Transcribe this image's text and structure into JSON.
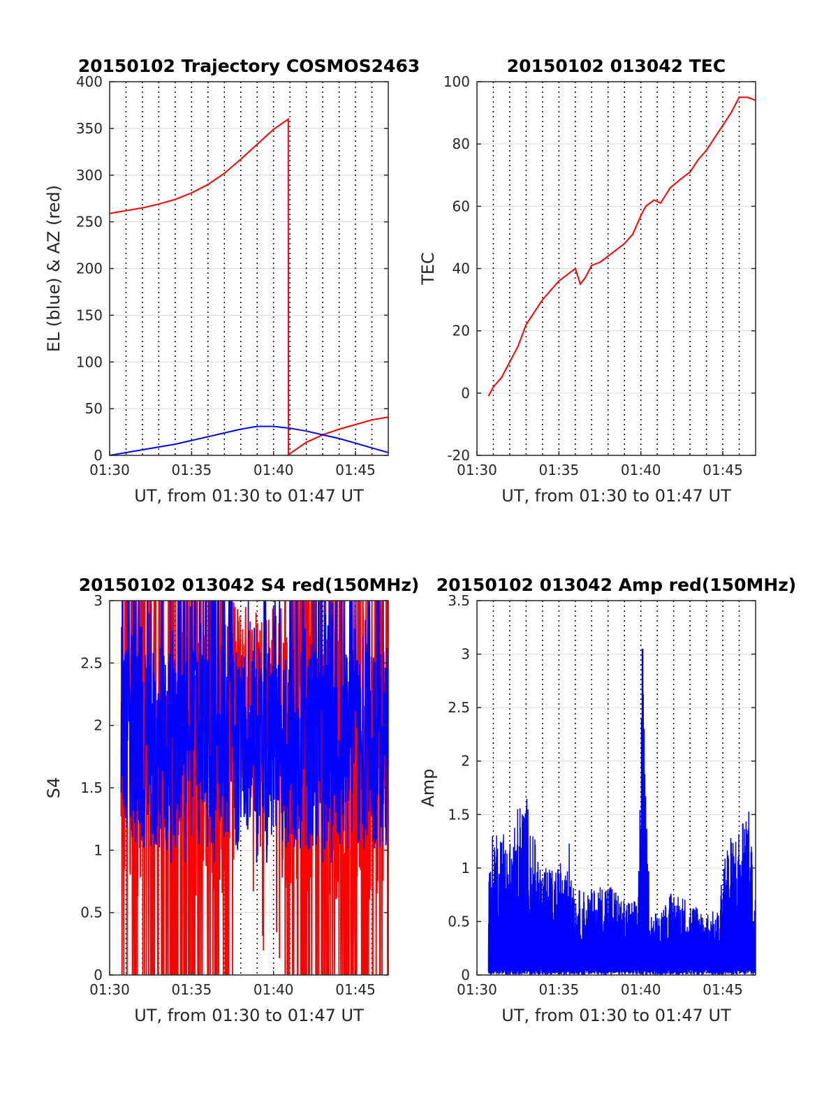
{
  "colors": {
    "red": "#ff0000",
    "blue": "#0000ff",
    "axis": "#262626",
    "grid": "#d9d9d9",
    "vline": "#000000"
  },
  "chart_data": [
    {
      "id": "trajectory",
      "type": "line",
      "title": "20150102 Trajectory COSMOS2463",
      "xlabel": "UT, from 01:30 to 01:47 UT",
      "ylabel": "EL (blue) & AZ (red)",
      "xlim": [
        0,
        17
      ],
      "ylim": [
        0,
        400
      ],
      "xticks": [
        0,
        5,
        10,
        15
      ],
      "xticklabels": [
        "01:30",
        "01:35",
        "01:40",
        "01:45"
      ],
      "yticks": [
        0,
        50,
        100,
        150,
        200,
        250,
        300,
        350,
        400
      ],
      "yticklabels": [
        "0",
        "50",
        "100",
        "150",
        "200",
        "250",
        "300",
        "350",
        "400"
      ],
      "vlines_minutes": [
        1,
        2,
        3,
        4,
        5,
        6,
        7,
        8,
        9,
        10,
        11,
        12,
        13,
        14,
        15,
        16
      ],
      "series": [
        {
          "color": "#ff0000",
          "x": [
            0.0,
            1.0,
            2.0,
            3.0,
            4.0,
            5.0,
            6.0,
            7.0,
            8.0,
            9.0,
            10.0,
            10.9,
            10.91,
            10.92,
            12.0,
            13.0,
            14.0,
            15.0,
            16.0,
            17.0
          ],
          "y": [
            259,
            262,
            265,
            269,
            274,
            281,
            290,
            302,
            317,
            333,
            349,
            360,
            0,
            1,
            14,
            22,
            28,
            33,
            38,
            41
          ]
        },
        {
          "color": "#0000ff",
          "x": [
            0.0,
            1.0,
            2.0,
            3.0,
            4.0,
            5.0,
            6.0,
            7.0,
            8.0,
            9.0,
            10.0,
            11.0,
            12.0,
            13.0,
            14.0,
            15.0,
            16.0,
            17.0
          ],
          "y": [
            0,
            3,
            6,
            9,
            12,
            16,
            20,
            24,
            28,
            31,
            31,
            29,
            26,
            22,
            18,
            13,
            8,
            3
          ]
        }
      ]
    },
    {
      "id": "tec",
      "type": "line",
      "title": "20150102 013042 TEC",
      "xlabel": "UT, from 01:30 to 01:47 UT",
      "ylabel": "TEC",
      "xlim": [
        0,
        17
      ],
      "ylim": [
        -20,
        100
      ],
      "xticks": [
        0,
        5,
        10,
        15
      ],
      "xticklabels": [
        "01:30",
        "01:35",
        "01:40",
        "01:45"
      ],
      "yticks": [
        -20,
        0,
        20,
        40,
        60,
        80,
        100
      ],
      "yticklabels": [
        "-20",
        "0",
        "20",
        "40",
        "60",
        "80",
        "100"
      ],
      "vlines_minutes": [
        1,
        2,
        3,
        4,
        5,
        6,
        7,
        8,
        9,
        10,
        11,
        12,
        13,
        14,
        15,
        16
      ],
      "series": [
        {
          "color": "#ff0000",
          "x": [
            0.7,
            1.0,
            1.5,
            2.0,
            2.5,
            3.0,
            3.5,
            4.0,
            4.5,
            5.0,
            5.5,
            6.0,
            6.3,
            6.6,
            7.0,
            7.5,
            8.0,
            8.5,
            9.0,
            9.5,
            10.0,
            10.3,
            10.8,
            11.2,
            11.8,
            12.5,
            13.0,
            13.5,
            14.0,
            14.5,
            15.0,
            15.5,
            16.0,
            16.5,
            17.0
          ],
          "y": [
            -1,
            2,
            5,
            10,
            15,
            22,
            26,
            30,
            33,
            36,
            38,
            40,
            35,
            37,
            41,
            42,
            44,
            46,
            48,
            51,
            57,
            60,
            62,
            61,
            66,
            69,
            71,
            75,
            78,
            82,
            86,
            90,
            95,
            95,
            94
          ]
        }
      ]
    },
    {
      "id": "s4",
      "type": "line",
      "title": "20150102 013042 S4 red(150MHz)",
      "xlabel": "UT, from 01:30 to 01:47 UT",
      "ylabel": "S4",
      "xlim": [
        0,
        17
      ],
      "ylim": [
        0,
        3
      ],
      "xticks": [
        0,
        5,
        10,
        15
      ],
      "xticklabels": [
        "01:30",
        "01:35",
        "01:40",
        "01:45"
      ],
      "yticks": [
        0,
        0.5,
        1,
        1.5,
        2,
        2.5,
        3
      ],
      "yticklabels": [
        "0",
        "0.5",
        "1",
        "1.5",
        "2",
        "2.5",
        "3"
      ],
      "vlines_minutes": [
        1,
        2,
        3,
        4,
        5,
        6,
        7,
        8,
        9,
        10,
        11,
        12,
        13,
        14,
        15,
        16
      ],
      "noise_series": [
        {
          "color": "#ff0000",
          "x_start": 0.7,
          "x_end": 17,
          "ymin": 0,
          "ymax": 3,
          "center": 1.7,
          "note_gap": [
            7.5,
            10.5
          ]
        },
        {
          "color": "#0000ff",
          "x_start": 0.7,
          "x_end": 17,
          "ymin": 0.9,
          "ymax": 3,
          "center": 1.8
        }
      ]
    },
    {
      "id": "amp",
      "type": "line",
      "title": "20150102 013042 Amp red(150MHz)",
      "xlabel": "UT, from 01:30 to 01:47 UT",
      "ylabel": "Amp",
      "xlim": [
        0,
        17
      ],
      "ylim": [
        0,
        3.5
      ],
      "xticks": [
        0,
        5,
        10,
        15
      ],
      "xticklabels": [
        "01:30",
        "01:35",
        "01:40",
        "01:45"
      ],
      "yticks": [
        0,
        0.5,
        1,
        1.5,
        2,
        2.5,
        3,
        3.5
      ],
      "yticklabels": [
        "0",
        "0.5",
        "1",
        "1.5",
        "2",
        "2.5",
        "3",
        "3.5"
      ],
      "vlines_minutes": [
        1,
        2,
        3,
        4,
        5,
        6,
        7,
        8,
        9,
        10,
        11,
        12,
        13,
        14,
        15,
        16
      ],
      "envelope": {
        "color": "#0000ff",
        "x": [
          0.7,
          1.0,
          1.5,
          2.0,
          2.5,
          3.0,
          3.5,
          4.0,
          5.0,
          5.5,
          6.0,
          7.0,
          8.0,
          9.0,
          9.8,
          10.1,
          10.3,
          10.6,
          11.0,
          12.0,
          13.0,
          14.0,
          14.8,
          15.0,
          15.5,
          16.0,
          16.5,
          17.0
        ],
        "y": [
          0.9,
          1.4,
          1.4,
          1.3,
          1.6,
          1.7,
          1.3,
          1.0,
          1.0,
          1.4,
          0.8,
          0.8,
          0.9,
          0.7,
          0.7,
          3.05,
          1.6,
          0.6,
          0.6,
          0.8,
          0.7,
          0.6,
          0.6,
          1.2,
          1.3,
          1.4,
          1.7,
          0.7
        ]
      }
    }
  ]
}
